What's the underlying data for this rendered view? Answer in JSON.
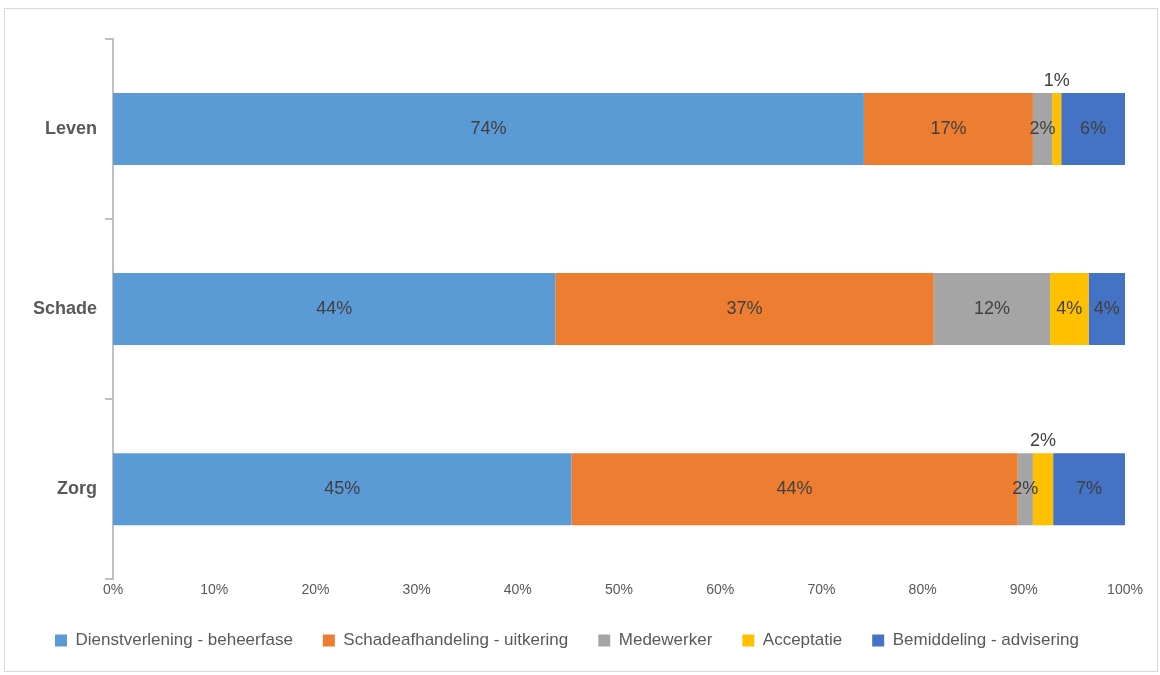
{
  "chart_data": {
    "type": "bar",
    "orientation": "horizontal",
    "stacked": true,
    "categories": [
      "Leven",
      "Schade",
      "Zorg"
    ],
    "series": [
      {
        "name": "Dienstverlening - beheerfase",
        "color": "#5b9bd5",
        "values": [
          74.2,
          43.7,
          45.3
        ],
        "value_labels": [
          "74%",
          "44%",
          "45%"
        ]
      },
      {
        "name": "Schadeafhandeling - uitkering",
        "color": "#ed7d31",
        "values": [
          16.7,
          37.4,
          44.1
        ],
        "value_labels": [
          "17%",
          "37%",
          "44%"
        ]
      },
      {
        "name": "Medewerker",
        "color": "#a5a5a5",
        "values": [
          1.9,
          11.5,
          1.5
        ],
        "value_labels": [
          "2%",
          "12%",
          "2%"
        ]
      },
      {
        "name": "Acceptatie",
        "color": "#ffc000",
        "values": [
          0.9,
          3.8,
          2.0
        ],
        "value_labels": [
          "1%",
          "4%",
          "2%"
        ]
      },
      {
        "name": "Bemiddeling - advisering",
        "color": "#4472c4",
        "values": [
          6.3,
          3.6,
          7.1
        ],
        "value_labels": [
          "6%",
          "4%",
          "7%"
        ]
      }
    ],
    "xlim": [
      0,
      100
    ],
    "xticks": [
      {
        "value": 0,
        "label": "0%"
      },
      {
        "value": 10,
        "label": "10%"
      },
      {
        "value": 20,
        "label": "20%"
      },
      {
        "value": 30,
        "label": "30%"
      },
      {
        "value": 40,
        "label": "40%"
      },
      {
        "value": 50,
        "label": "50%"
      },
      {
        "value": 60,
        "label": "60%"
      },
      {
        "value": 70,
        "label": "70%"
      },
      {
        "value": 80,
        "label": "80%"
      },
      {
        "value": 90,
        "label": "90%"
      },
      {
        "value": 100,
        "label": "100%"
      }
    ],
    "grid": false,
    "legend": "bottom"
  }
}
